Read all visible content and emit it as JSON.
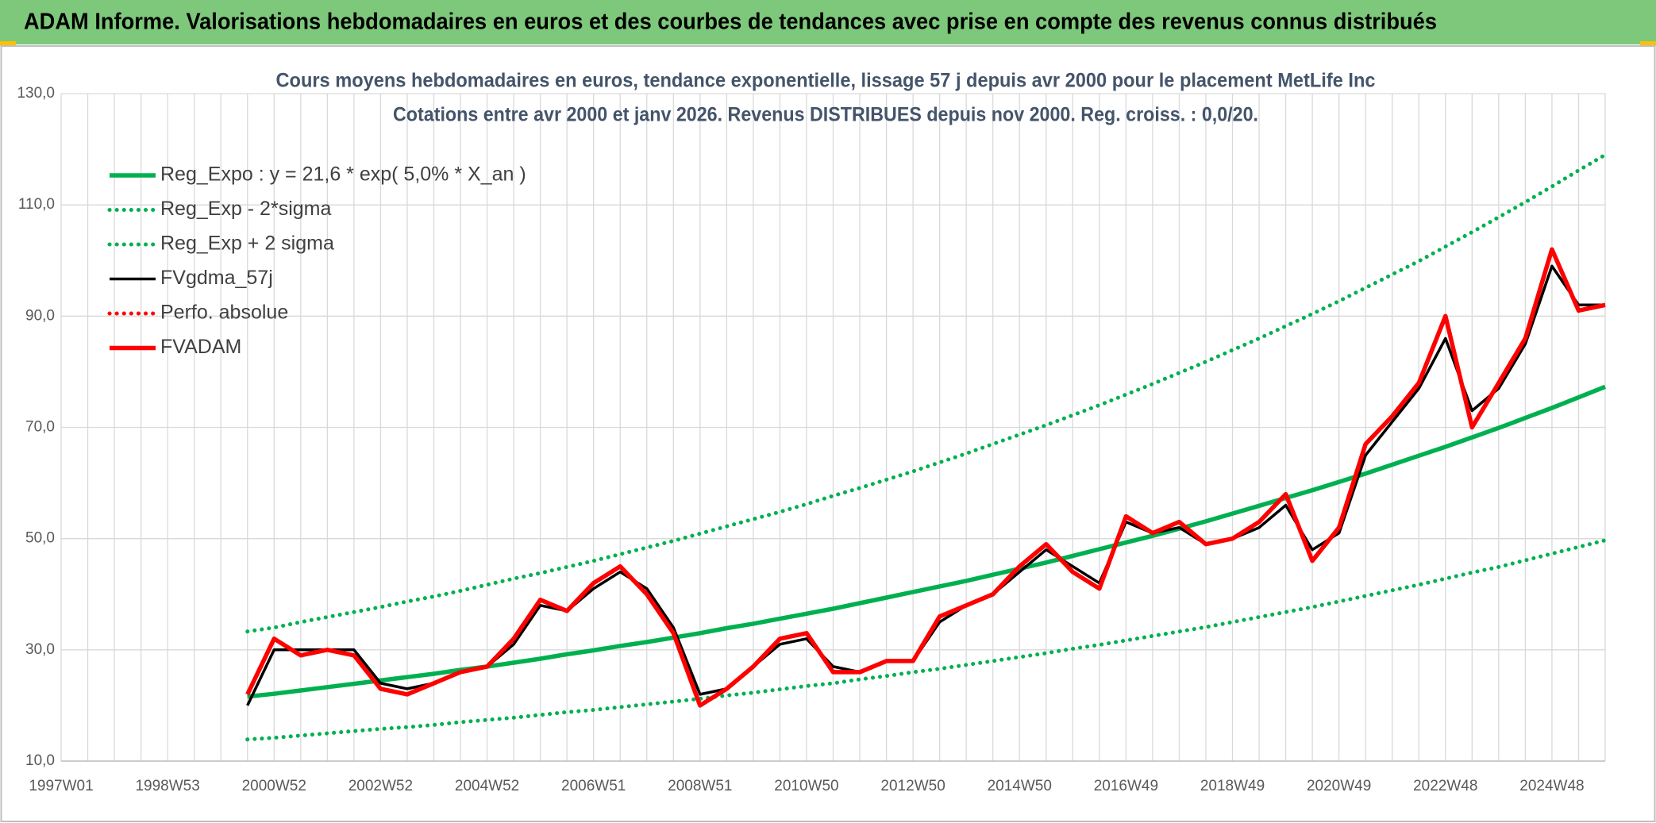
{
  "header": {
    "title": "ADAM Informe. Valorisations hebdomadaires en euros et des courbes de tendances avec prise en compte des revenus connus distribués"
  },
  "chart_data": {
    "type": "line",
    "title": "Cours moyens hebdomadaires en euros, tendance exponentielle, lissage 57 j depuis avr 2000 pour le placement MetLife Inc",
    "subtitle": "Cotations entre avr 2000 et janv 2026. Revenus DISTRIBUES depuis nov 2000. Reg. croiss. : 0,0/20.",
    "categories": [
      "1997W01",
      null,
      null,
      null,
      "1998W53",
      null,
      null,
      null,
      "2000W52",
      null,
      null,
      null,
      "2002W52",
      null,
      null,
      null,
      "2004W52",
      null,
      null,
      null,
      "2006W51",
      null,
      null,
      null,
      "2008W51",
      null,
      null,
      null,
      "2010W50",
      null,
      null,
      null,
      "2012W50",
      null,
      null,
      null,
      "2014W50",
      null,
      null,
      null,
      "2016W49",
      null,
      null,
      null,
      "2018W49",
      null,
      null,
      null,
      "2020W49",
      null,
      null,
      null,
      "2022W48",
      null,
      null,
      null,
      "2024W48",
      null,
      null
    ],
    "ylim": [
      10,
      130
    ],
    "yticks": [
      {
        "value": 10,
        "label": "10,0"
      },
      {
        "value": 30,
        "label": "30,0"
      },
      {
        "value": 50,
        "label": "50,0"
      },
      {
        "value": 70,
        "label": "70,0"
      },
      {
        "value": 90,
        "label": "90,0"
      },
      {
        "value": 110,
        "label": "110,0"
      },
      {
        "value": 130,
        "label": "130,0"
      }
    ],
    "grid": true,
    "legend": "upper left",
    "series": [
      {
        "name": "Reg_Expo : y = 21,6 * exp( 5,0% *  X_an )",
        "color": "#00b050",
        "line_style": "solid",
        "values": [
          null,
          null,
          null,
          null,
          null,
          null,
          null,
          21.6,
          22.1,
          22.7,
          23.3,
          23.9,
          24.5,
          25.1,
          25.7,
          26.4,
          27.0,
          27.7,
          28.4,
          29.2,
          29.9,
          30.7,
          31.4,
          32.2,
          33.0,
          33.9,
          34.7,
          35.6,
          36.5,
          37.4,
          38.4,
          39.4,
          40.4,
          41.4,
          42.4,
          43.5,
          44.6,
          45.7,
          46.9,
          48.1,
          49.3,
          50.5,
          51.8,
          53.1,
          54.5,
          55.9,
          57.3,
          58.7,
          60.2,
          61.7,
          63.3,
          64.9,
          66.5,
          68.2,
          69.9,
          71.7,
          73.5,
          75.4,
          77.3
        ]
      },
      {
        "name": "Reg_Exp - 2*sigma",
        "color": "#00b050",
        "line_style": "dotted",
        "values": [
          null,
          null,
          null,
          null,
          null,
          null,
          null,
          13.9,
          14.2,
          14.6,
          15.0,
          15.4,
          15.8,
          16.1,
          16.5,
          17.0,
          17.4,
          17.8,
          18.3,
          18.8,
          19.2,
          19.7,
          20.2,
          20.7,
          21.2,
          21.8,
          22.3,
          22.9,
          23.5,
          24.0,
          24.7,
          25.3,
          26.0,
          26.6,
          27.3,
          28.0,
          28.7,
          29.4,
          30.2,
          30.9,
          31.7,
          32.5,
          33.3,
          34.1,
          35.0,
          35.9,
          36.8,
          37.7,
          38.7,
          39.7,
          40.7,
          41.7,
          42.8,
          43.9,
          44.9,
          46.1,
          47.3,
          48.5,
          49.7
        ]
      },
      {
        "name": "Reg_Exp + 2 sigma",
        "color": "#00b050",
        "line_style": "dotted",
        "values": [
          null,
          null,
          null,
          null,
          null,
          null,
          null,
          33.3,
          34.0,
          35.0,
          35.9,
          36.8,
          37.7,
          38.7,
          39.6,
          40.6,
          41.7,
          42.8,
          43.8,
          44.9,
          46.0,
          47.2,
          48.4,
          49.6,
          50.9,
          52.2,
          53.5,
          54.8,
          56.2,
          57.7,
          59.1,
          60.6,
          62.1,
          63.7,
          65.3,
          67.0,
          68.7,
          70.4,
          72.2,
          74.0,
          75.9,
          77.8,
          79.8,
          81.8,
          83.9,
          86.0,
          88.2,
          90.4,
          92.7,
          95.1,
          97.5,
          99.9,
          102.5,
          105.1,
          107.8,
          110.5,
          113.3,
          116.2,
          119.0
        ]
      },
      {
        "name": "FVgdma_57j",
        "color": "#000000",
        "line_style": "solid",
        "values": [
          null,
          null,
          null,
          null,
          null,
          null,
          null,
          20,
          30,
          30,
          30,
          30,
          24,
          23,
          24,
          26,
          27,
          31,
          38,
          37,
          41,
          44,
          41,
          34,
          22,
          23,
          27,
          31,
          32,
          27,
          26,
          28,
          28,
          35,
          38,
          40,
          44,
          48,
          45,
          42,
          53,
          51,
          52,
          49,
          50,
          52,
          56,
          48,
          51,
          65,
          71,
          77,
          86,
          73,
          77,
          85,
          99,
          92,
          92
        ]
      },
      {
        "name": "Perfo. absolue",
        "color": "#ff0000",
        "line_style": "dotted"
      },
      {
        "name": "FVADAM",
        "color": "#ff0000",
        "line_style": "solid",
        "values": [
          null,
          null,
          null,
          null,
          null,
          null,
          null,
          22,
          32,
          29,
          30,
          29,
          23,
          22,
          24,
          26,
          27,
          32,
          39,
          37,
          42,
          45,
          40,
          33,
          20,
          23,
          27,
          32,
          33,
          26,
          26,
          28,
          28,
          36,
          38,
          40,
          45,
          49,
          44,
          41,
          54,
          51,
          53,
          49,
          50,
          53,
          58,
          46,
          52,
          67,
          72,
          78,
          90,
          70,
          78,
          86,
          102,
          91,
          92
        ]
      }
    ]
  }
}
